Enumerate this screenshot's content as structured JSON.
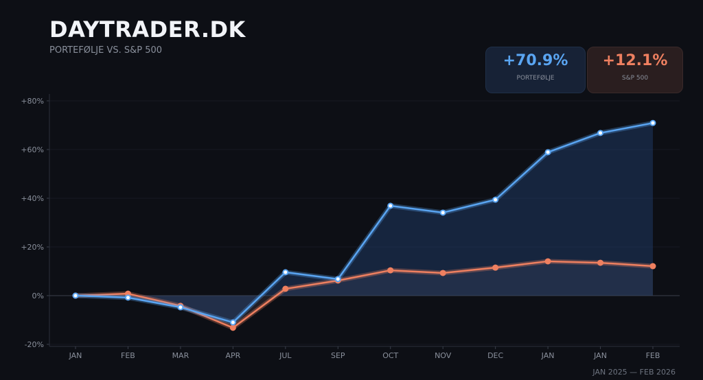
{
  "header": {
    "title": "DAYTRADER.DK",
    "subtitle": "PORTEFØLJE VS. S&P 500"
  },
  "cards": [
    {
      "value": "+70.9%",
      "label": "PORTEFØLJE"
    },
    {
      "value": "+12.1%",
      "label": "S&P 500"
    }
  ],
  "date_range": "JAN 2025 — FEB 2026",
  "colors": {
    "portfolio": "#5aa5f2",
    "sp500": "#ef8060",
    "background": "#0d0f15"
  },
  "chart_data": {
    "type": "line",
    "categories": [
      "JAN",
      "FEB",
      "MAR",
      "APR",
      "JUL",
      "SEP",
      "OCT",
      "NOV",
      "DEC",
      "JAN",
      "JAN",
      "FEB"
    ],
    "series": [
      {
        "name": "PORTEFØLJE",
        "values": [
          0,
          -0.8,
          -4.8,
          -11,
          9.6,
          6.8,
          36.9,
          34.1,
          39.4,
          58.9,
          66.8,
          70.9
        ]
      },
      {
        "name": "S&P 500",
        "values": [
          0,
          0.8,
          -4.2,
          -13.2,
          2.8,
          6.2,
          10.4,
          9.3,
          11.5,
          14.1,
          13.5,
          12.1
        ]
      }
    ],
    "yticks": [
      "-20%",
      "0%",
      "+20%",
      "+40%",
      "+60%",
      "+80%"
    ],
    "ytick_values": [
      -20,
      0,
      20,
      40,
      60,
      80
    ],
    "ylim": [
      -21,
      83
    ],
    "grid": true
  }
}
